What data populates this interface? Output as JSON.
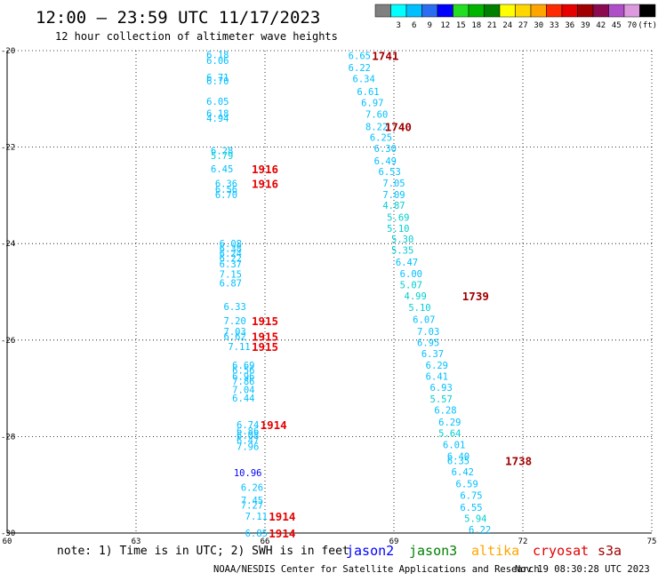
{
  "header": {
    "title": "12:00 – 23:59 UTC 11/17/2023",
    "subtitle": "12 hour collection of altimeter wave heights"
  },
  "legend": {
    "swatches": [
      {
        "color": "#808080",
        "label": ""
      },
      {
        "color": "#00ffff",
        "label": "3"
      },
      {
        "color": "#00bfff",
        "label": "6"
      },
      {
        "color": "#2b6df0",
        "label": "9"
      },
      {
        "color": "#0000ff",
        "label": "12"
      },
      {
        "color": "#22dd22",
        "label": "15"
      },
      {
        "color": "#00b400",
        "label": "18"
      },
      {
        "color": "#008000",
        "label": "21"
      },
      {
        "color": "#ffff00",
        "label": "24"
      },
      {
        "color": "#ffd700",
        "label": "27"
      },
      {
        "color": "#ffa500",
        "label": "30"
      },
      {
        "color": "#ff2a00",
        "label": "33"
      },
      {
        "color": "#e60000",
        "label": "36"
      },
      {
        "color": "#a00000",
        "label": "39"
      },
      {
        "color": "#8b0a50",
        "label": "42"
      },
      {
        "color": "#b050c8",
        "label": "45"
      },
      {
        "color": "#dd99dd",
        "label": "70"
      },
      {
        "color": "#000000",
        "label": "(ft)"
      }
    ]
  },
  "footer": {
    "note": "note:  1) Time is in UTC; 2) SWH is in feet",
    "satellites": [
      {
        "name": "jason2",
        "color": "#0000ff"
      },
      {
        "name": "jason3",
        "color": "#008000"
      },
      {
        "name": "altika",
        "color": "#ffa500"
      },
      {
        "name": "cryosat",
        "color": "#e60000"
      },
      {
        "name": "s3a",
        "color": "#a00000"
      }
    ],
    "credit": "NOAA/NESDIS Center for Satellite Applications and Research",
    "timestamp": "Nov 19 08:30:28 UTC 2023"
  },
  "chart_data": {
    "type": "scatter",
    "xlim": [
      60,
      75
    ],
    "ylim": [
      -30,
      -20
    ],
    "x_ticks": [
      "60",
      "63",
      "66",
      "69",
      "72",
      "75"
    ],
    "y_ticks": [
      "-20",
      "-22",
      "-24",
      "-26",
      "-28",
      "-30"
    ],
    "grid": true,
    "points": [
      {
        "x": 64.9,
        "y": -20.08,
        "v": "6.18",
        "c": "#00bfff"
      },
      {
        "x": 64.9,
        "y": -20.2,
        "v": "6.06",
        "c": "#00bfff"
      },
      {
        "x": 64.9,
        "y": -20.55,
        "v": "6.71",
        "c": "#00bfff"
      },
      {
        "x": 64.9,
        "y": -20.63,
        "v": "6.70",
        "c": "#00bfff"
      },
      {
        "x": 64.9,
        "y": -21.05,
        "v": "6.05",
        "c": "#00bfff"
      },
      {
        "x": 64.9,
        "y": -21.3,
        "v": "6.18",
        "c": "#00bfff"
      },
      {
        "x": 64.9,
        "y": -21.4,
        "v": "4.94",
        "c": "#00bfff"
      },
      {
        "x": 65.0,
        "y": -22.07,
        "v": "6.28",
        "c": "#00bfff"
      },
      {
        "x": 65.0,
        "y": -22.17,
        "v": "5.79",
        "c": "#00ced1"
      },
      {
        "x": 65.0,
        "y": -22.45,
        "v": "6.45",
        "c": "#00bfff"
      },
      {
        "x": 65.1,
        "y": -22.75,
        "v": "6.36",
        "c": "#00bfff"
      },
      {
        "x": 65.1,
        "y": -22.87,
        "v": "6.56",
        "c": "#00bfff"
      },
      {
        "x": 65.1,
        "y": -22.98,
        "v": "6.70",
        "c": "#00bfff"
      },
      {
        "x": 65.2,
        "y": -24.0,
        "v": "6.08",
        "c": "#00bfff"
      },
      {
        "x": 65.2,
        "y": -24.1,
        "v": "6.38",
        "c": "#00bfff"
      },
      {
        "x": 65.2,
        "y": -24.2,
        "v": "6.24",
        "c": "#00bfff"
      },
      {
        "x": 65.2,
        "y": -24.3,
        "v": "6.22",
        "c": "#00bfff"
      },
      {
        "x": 65.2,
        "y": -24.42,
        "v": "6.37",
        "c": "#00bfff"
      },
      {
        "x": 65.2,
        "y": -24.63,
        "v": "7.15",
        "c": "#00bfff"
      },
      {
        "x": 65.2,
        "y": -24.82,
        "v": "6.87",
        "c": "#00bfff"
      },
      {
        "x": 65.3,
        "y": -25.3,
        "v": "6.33",
        "c": "#00bfff"
      },
      {
        "x": 65.3,
        "y": -25.6,
        "v": "7.20",
        "c": "#00bfff"
      },
      {
        "x": 65.3,
        "y": -25.82,
        "v": "7.03",
        "c": "#00bfff"
      },
      {
        "x": 65.3,
        "y": -25.92,
        "v": "6.62",
        "c": "#00bfff"
      },
      {
        "x": 65.4,
        "y": -26.13,
        "v": "7.11",
        "c": "#00bfff"
      },
      {
        "x": 65.5,
        "y": -26.52,
        "v": "6.69",
        "c": "#00bfff"
      },
      {
        "x": 65.5,
        "y": -26.62,
        "v": "6.56",
        "c": "#00bfff"
      },
      {
        "x": 65.5,
        "y": -26.75,
        "v": "6.96",
        "c": "#00bfff"
      },
      {
        "x": 65.5,
        "y": -26.85,
        "v": "7.86",
        "c": "#00bfff"
      },
      {
        "x": 65.5,
        "y": -27.03,
        "v": "7.04",
        "c": "#00bfff"
      },
      {
        "x": 65.5,
        "y": -27.2,
        "v": "6.44",
        "c": "#00bfff"
      },
      {
        "x": 65.6,
        "y": -27.75,
        "v": "6.74",
        "c": "#00bfff"
      },
      {
        "x": 65.6,
        "y": -27.88,
        "v": "6.86",
        "c": "#00bfff"
      },
      {
        "x": 65.6,
        "y": -27.97,
        "v": "6.08",
        "c": "#00bfff"
      },
      {
        "x": 65.6,
        "y": -28.08,
        "v": "6.47",
        "c": "#00bfff"
      },
      {
        "x": 65.6,
        "y": -28.2,
        "v": "7.96",
        "c": "#00bfff"
      },
      {
        "x": 65.6,
        "y": -28.75,
        "v": "10.96",
        "c": "#0000ff"
      },
      {
        "x": 65.7,
        "y": -29.05,
        "v": "6.26",
        "c": "#00bfff"
      },
      {
        "x": 65.7,
        "y": -29.32,
        "v": "7.45",
        "c": "#00bfff"
      },
      {
        "x": 65.7,
        "y": -29.42,
        "v": "7.27",
        "c": "#00bfff"
      },
      {
        "x": 65.8,
        "y": -29.65,
        "v": "7.11",
        "c": "#00bfff"
      },
      {
        "x": 65.8,
        "y": -30.0,
        "v": "6.85",
        "c": "#00bfff"
      },
      {
        "x": 68.2,
        "y": -20.1,
        "v": "6.65",
        "c": "#00bfff"
      },
      {
        "x": 68.2,
        "y": -20.35,
        "v": "6.22",
        "c": "#00bfff"
      },
      {
        "x": 68.3,
        "y": -20.58,
        "v": "6.34",
        "c": "#00bfff"
      },
      {
        "x": 68.4,
        "y": -20.85,
        "v": "6.61",
        "c": "#00bfff"
      },
      {
        "x": 68.5,
        "y": -21.08,
        "v": "6.97",
        "c": "#00bfff"
      },
      {
        "x": 68.6,
        "y": -21.32,
        "v": "7.60",
        "c": "#00bfff"
      },
      {
        "x": 68.6,
        "y": -21.57,
        "v": "8.22",
        "c": "#00bfff"
      },
      {
        "x": 68.7,
        "y": -21.8,
        "v": "6.25",
        "c": "#00bfff"
      },
      {
        "x": 68.8,
        "y": -22.03,
        "v": "6.30",
        "c": "#00bfff"
      },
      {
        "x": 68.8,
        "y": -22.28,
        "v": "6.49",
        "c": "#00bfff"
      },
      {
        "x": 68.9,
        "y": -22.5,
        "v": "6.53",
        "c": "#00bfff"
      },
      {
        "x": 69.0,
        "y": -22.74,
        "v": "7.05",
        "c": "#00bfff"
      },
      {
        "x": 69.0,
        "y": -22.98,
        "v": "7.09",
        "c": "#00bfff"
      },
      {
        "x": 69.0,
        "y": -23.2,
        "v": "4.87",
        "c": "#00ced1"
      },
      {
        "x": 69.1,
        "y": -23.45,
        "v": "5.69",
        "c": "#00ced1"
      },
      {
        "x": 69.1,
        "y": -23.68,
        "v": "5.10",
        "c": "#00ced1"
      },
      {
        "x": 69.2,
        "y": -23.9,
        "v": "5.30",
        "c": "#00ced1"
      },
      {
        "x": 69.2,
        "y": -24.13,
        "v": "5.35",
        "c": "#00ced1"
      },
      {
        "x": 69.3,
        "y": -24.38,
        "v": "6.47",
        "c": "#00bfff"
      },
      {
        "x": 69.4,
        "y": -24.62,
        "v": "6.00",
        "c": "#00bfff"
      },
      {
        "x": 69.4,
        "y": -24.85,
        "v": "5.07",
        "c": "#00ced1"
      },
      {
        "x": 69.5,
        "y": -25.08,
        "v": "4.99",
        "c": "#00ced1"
      },
      {
        "x": 69.6,
        "y": -25.32,
        "v": "5.10",
        "c": "#00ced1"
      },
      {
        "x": 69.7,
        "y": -25.57,
        "v": "6.07",
        "c": "#00bfff"
      },
      {
        "x": 69.8,
        "y": -25.82,
        "v": "7.03",
        "c": "#00bfff"
      },
      {
        "x": 69.8,
        "y": -26.05,
        "v": "6.95",
        "c": "#00bfff"
      },
      {
        "x": 69.9,
        "y": -26.28,
        "v": "6.37",
        "c": "#00bfff"
      },
      {
        "x": 70.0,
        "y": -26.52,
        "v": "6.29",
        "c": "#00bfff"
      },
      {
        "x": 70.0,
        "y": -26.75,
        "v": "6.41",
        "c": "#00bfff"
      },
      {
        "x": 70.1,
        "y": -26.98,
        "v": "6.93",
        "c": "#00bfff"
      },
      {
        "x": 70.1,
        "y": -27.22,
        "v": "5.57",
        "c": "#00ced1"
      },
      {
        "x": 70.2,
        "y": -27.45,
        "v": "6.28",
        "c": "#00bfff"
      },
      {
        "x": 70.3,
        "y": -27.7,
        "v": "6.29",
        "c": "#00bfff"
      },
      {
        "x": 70.3,
        "y": -27.93,
        "v": "5.64",
        "c": "#00ced1"
      },
      {
        "x": 70.4,
        "y": -28.17,
        "v": "6.01",
        "c": "#00bfff"
      },
      {
        "x": 70.5,
        "y": -28.41,
        "v": "6.40",
        "c": "#00bfff"
      },
      {
        "x": 70.5,
        "y": -28.5,
        "v": "6.35",
        "c": "#00bfff"
      },
      {
        "x": 70.6,
        "y": -28.73,
        "v": "6.42",
        "c": "#00bfff"
      },
      {
        "x": 70.7,
        "y": -28.98,
        "v": "6.59",
        "c": "#00bfff"
      },
      {
        "x": 70.8,
        "y": -29.22,
        "v": "6.75",
        "c": "#00bfff"
      },
      {
        "x": 70.8,
        "y": -29.47,
        "v": "6.55",
        "c": "#00bfff"
      },
      {
        "x": 70.9,
        "y": -29.7,
        "v": "5.94",
        "c": "#00ced1"
      },
      {
        "x": 71.0,
        "y": -29.93,
        "v": "6.22",
        "c": "#00bfff"
      }
    ],
    "passes": [
      {
        "x": 68.8,
        "y": -20.1,
        "label": "1741",
        "c": "#a00000"
      },
      {
        "x": 69.1,
        "y": -21.57,
        "label": "1740",
        "c": "#a00000"
      },
      {
        "x": 66.0,
        "y": -22.45,
        "label": "1916",
        "c": "#e60000"
      },
      {
        "x": 66.0,
        "y": -22.75,
        "label": "1916",
        "c": "#e60000"
      },
      {
        "x": 70.9,
        "y": -25.08,
        "label": "1739",
        "c": "#a00000"
      },
      {
        "x": 66.0,
        "y": -25.6,
        "label": "1915",
        "c": "#e60000"
      },
      {
        "x": 66.0,
        "y": -25.92,
        "label": "1915",
        "c": "#e60000"
      },
      {
        "x": 66.0,
        "y": -26.13,
        "label": "1915",
        "c": "#e60000"
      },
      {
        "x": 66.2,
        "y": -27.75,
        "label": "1914",
        "c": "#e60000"
      },
      {
        "x": 71.9,
        "y": -28.5,
        "label": "1738",
        "c": "#a00000"
      },
      {
        "x": 66.4,
        "y": -29.65,
        "label": "1914",
        "c": "#e60000"
      },
      {
        "x": 66.4,
        "y": -30.0,
        "label": "1914",
        "c": "#e60000"
      }
    ]
  }
}
